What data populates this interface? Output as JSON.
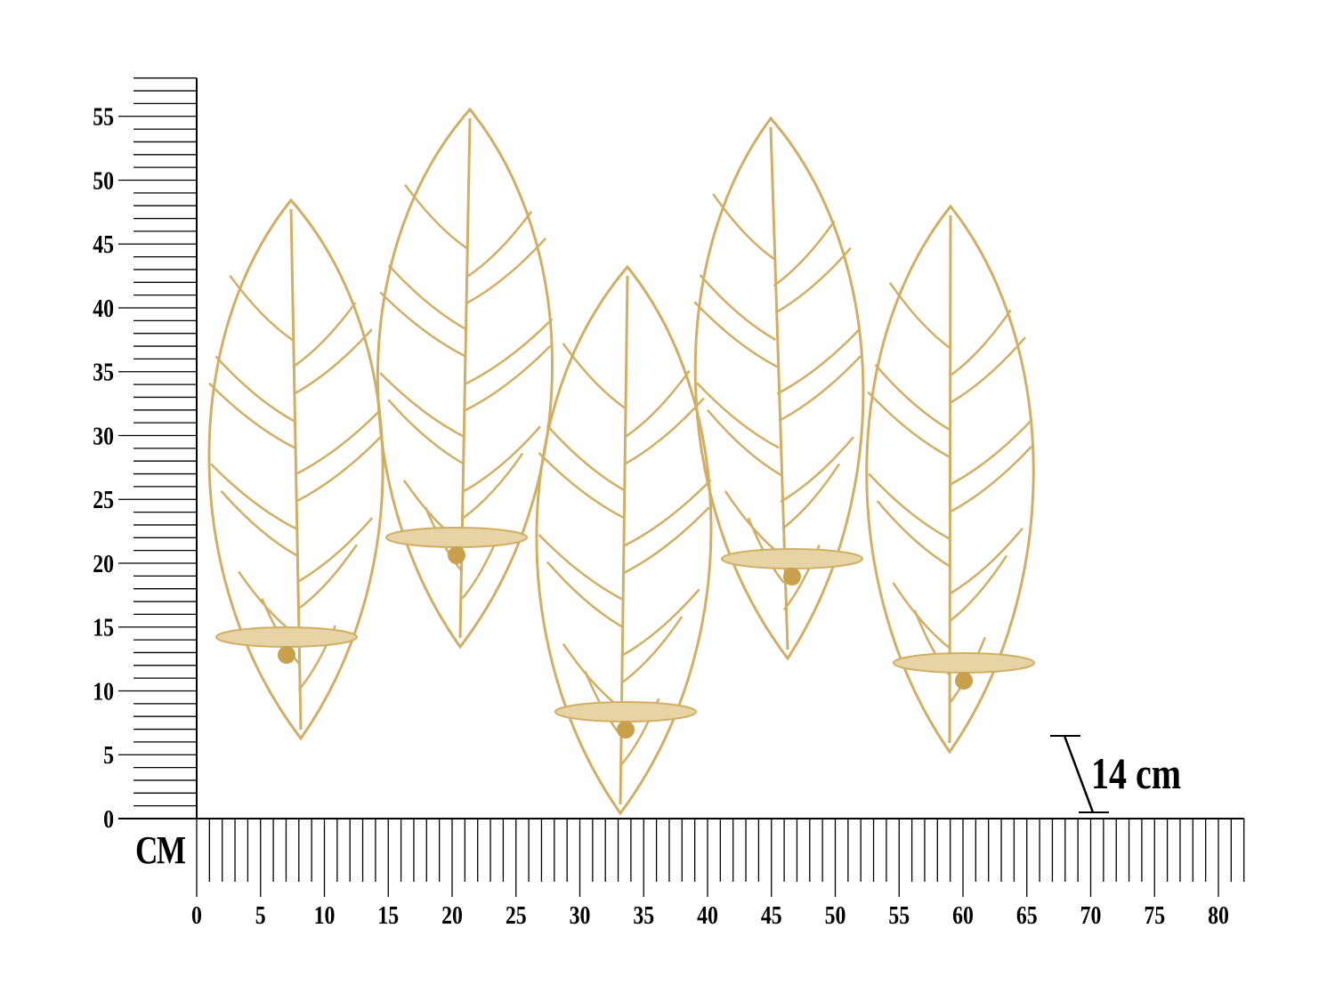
{
  "unit_label": "CM",
  "depth_label": "14 cm",
  "vertical_ruler": {
    "labels": [
      "0",
      "5",
      "10",
      "15",
      "20",
      "25",
      "30",
      "35",
      "40",
      "45",
      "50",
      "55"
    ],
    "max_cm": 58
  },
  "horizontal_ruler": {
    "labels": [
      "0",
      "5",
      "10",
      "15",
      "20",
      "25",
      "30",
      "35",
      "40",
      "45",
      "50",
      "55",
      "60",
      "65",
      "70",
      "75",
      "80"
    ],
    "max_cm": 82
  },
  "colors": {
    "product_gold": "#d2ae62",
    "plate": "#e6d3a6",
    "ruler": "#000000"
  },
  "product": {
    "leaves": 5,
    "candle_holders": 5
  }
}
